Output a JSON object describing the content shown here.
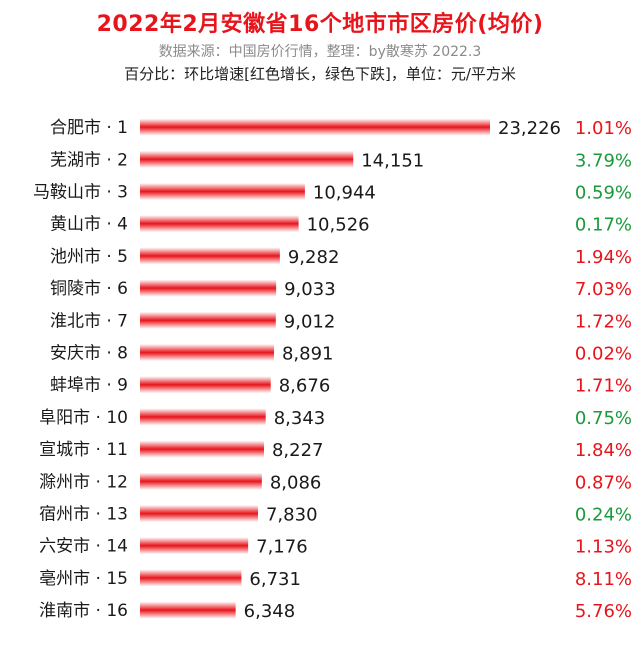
{
  "header": {
    "title": "2022年2月安徽省16个地市市区房价(均价)",
    "source": "数据来源：中国房价行情，整理：by散寒苏 2022.3",
    "note": "百分比：环比增速[红色增长，绿色下跌]，单位：元/平方米"
  },
  "colors": {
    "bar": "#e8141b",
    "increase": "#e8141b",
    "decrease": "#1a9a3a",
    "title": "#e8141b"
  },
  "chart_data": {
    "type": "bar",
    "orientation": "horizontal",
    "title": "2022年2月安徽省16个地市市区房价(均价)",
    "unit": "元/平方米",
    "categories": [
      "合肥市 · 1",
      "芜湖市 · 2",
      "马鞍山市 · 3",
      "黄山市 · 4",
      "池州市 · 5",
      "铜陵市 · 6",
      "淮北市 · 7",
      "安庆市 · 8",
      "蚌埠市 · 9",
      "阜阳市 · 10",
      "宣城市 · 11",
      "滁州市 · 12",
      "宿州市 · 13",
      "六安市 · 14",
      "亳州市 · 15",
      "淮南市 · 16"
    ],
    "values": [
      23226,
      14151,
      10944,
      10526,
      9282,
      9033,
      9012,
      8891,
      8676,
      8343,
      8227,
      8086,
      7830,
      7176,
      6731,
      6348
    ],
    "value_labels": [
      "23,226",
      "14,151",
      "10,944",
      "10,526",
      "9,282",
      "9,033",
      "9,012",
      "8,891",
      "8,676",
      "8,343",
      "8,227",
      "8,086",
      "7,830",
      "7,176",
      "6,731",
      "6,348"
    ],
    "change_pct": [
      "1.01%",
      "3.79%",
      "0.59%",
      "0.17%",
      "1.94%",
      "7.03%",
      "1.72%",
      "0.02%",
      "1.71%",
      "0.75%",
      "1.84%",
      "0.87%",
      "0.24%",
      "1.13%",
      "8.11%",
      "5.76%"
    ],
    "change_dir": [
      "up",
      "down",
      "down",
      "down",
      "up",
      "up",
      "up",
      "up",
      "up",
      "down",
      "up",
      "up",
      "down",
      "up",
      "up",
      "up"
    ],
    "xlim": [
      0,
      23226
    ],
    "grid": false,
    "legend": "none"
  }
}
